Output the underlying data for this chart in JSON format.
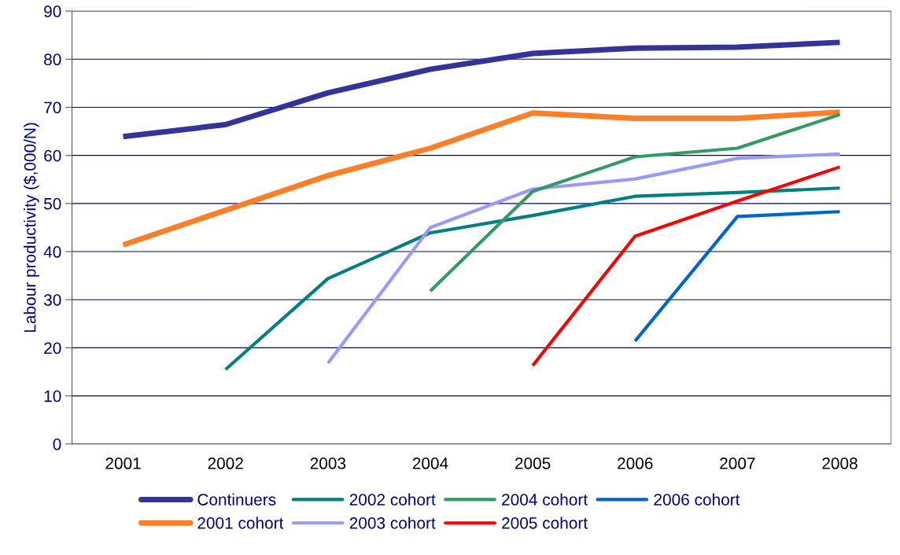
{
  "chart_data": {
    "type": "line",
    "ylabel": "Labour productivity ($,000/N)",
    "categories": [
      "2001",
      "2002",
      "2003",
      "2004",
      "2005",
      "2006",
      "2007",
      "2008"
    ],
    "series": [
      {
        "name": "Continuers",
        "color": "#333399",
        "values": [
          63.9,
          66.4,
          73.0,
          77.9,
          81.2,
          82.3,
          82.5,
          83.5
        ]
      },
      {
        "name": "2001 cohort",
        "color": "#ff7f27",
        "values": [
          41.4,
          48.6,
          55.8,
          61.5,
          68.8,
          67.7,
          67.7,
          69.0
        ]
      },
      {
        "name": "2002 cohort",
        "color": "#008080",
        "values": [
          null,
          15.5,
          34.4,
          43.9,
          47.5,
          51.5,
          52.3,
          53.2
        ]
      },
      {
        "name": "2003 cohort",
        "color": "#9999ff",
        "values": [
          null,
          null,
          16.8,
          45.0,
          53.0,
          55.1,
          59.4,
          60.3
        ]
      },
      {
        "name": "2004 cohort",
        "color": "#339966",
        "values": [
          null,
          null,
          null,
          31.8,
          52.5,
          59.7,
          61.5,
          68.5
        ]
      },
      {
        "name": "2005 cohort",
        "color": "#ff0000",
        "values": [
          null,
          null,
          null,
          null,
          16.3,
          43.2,
          50.5,
          57.6
        ]
      },
      {
        "name": "2006 cohort",
        "color": "#0066cc",
        "values": [
          null,
          null,
          null,
          null,
          null,
          21.4,
          47.3,
          48.3
        ]
      }
    ],
    "ylim": [
      0,
      90
    ],
    "yticks": [
      0,
      10,
      20,
      30,
      40,
      50,
      60,
      70,
      80,
      90
    ],
    "grid": "y",
    "legend": "bottom",
    "marker": "none",
    "line_style": "solid"
  }
}
